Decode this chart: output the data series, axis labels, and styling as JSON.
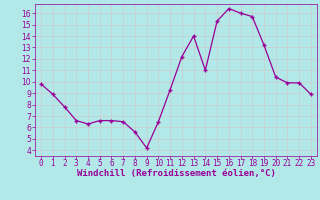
{
  "x": [
    0,
    1,
    2,
    3,
    4,
    5,
    6,
    7,
    8,
    9,
    10,
    11,
    12,
    13,
    14,
    15,
    16,
    17,
    18,
    19,
    20,
    21,
    22,
    23
  ],
  "y": [
    9.8,
    8.9,
    7.8,
    6.6,
    6.3,
    6.6,
    6.6,
    6.5,
    5.6,
    4.2,
    6.5,
    9.3,
    12.2,
    14.0,
    11.0,
    15.3,
    16.4,
    16.0,
    15.7,
    13.2,
    10.4,
    9.9,
    9.9,
    8.9
  ],
  "line_color": "#990099",
  "marker": "+",
  "bg_color": "#b3e8e8",
  "grid_color": "#cccccc",
  "xlabel": "Windchill (Refroidissement éolien,°C)",
  "ylabel": "",
  "xlim": [
    -0.5,
    23.5
  ],
  "ylim": [
    3.5,
    16.8
  ],
  "yticks": [
    4,
    5,
    6,
    7,
    8,
    9,
    10,
    11,
    12,
    13,
    14,
    15,
    16
  ],
  "xticks": [
    0,
    1,
    2,
    3,
    4,
    5,
    6,
    7,
    8,
    9,
    10,
    11,
    12,
    13,
    14,
    15,
    16,
    17,
    18,
    19,
    20,
    21,
    22,
    23
  ],
  "tick_color": "#990099",
  "label_color": "#990099",
  "tick_fontsize": 5.5,
  "xlabel_fontsize": 6.5
}
